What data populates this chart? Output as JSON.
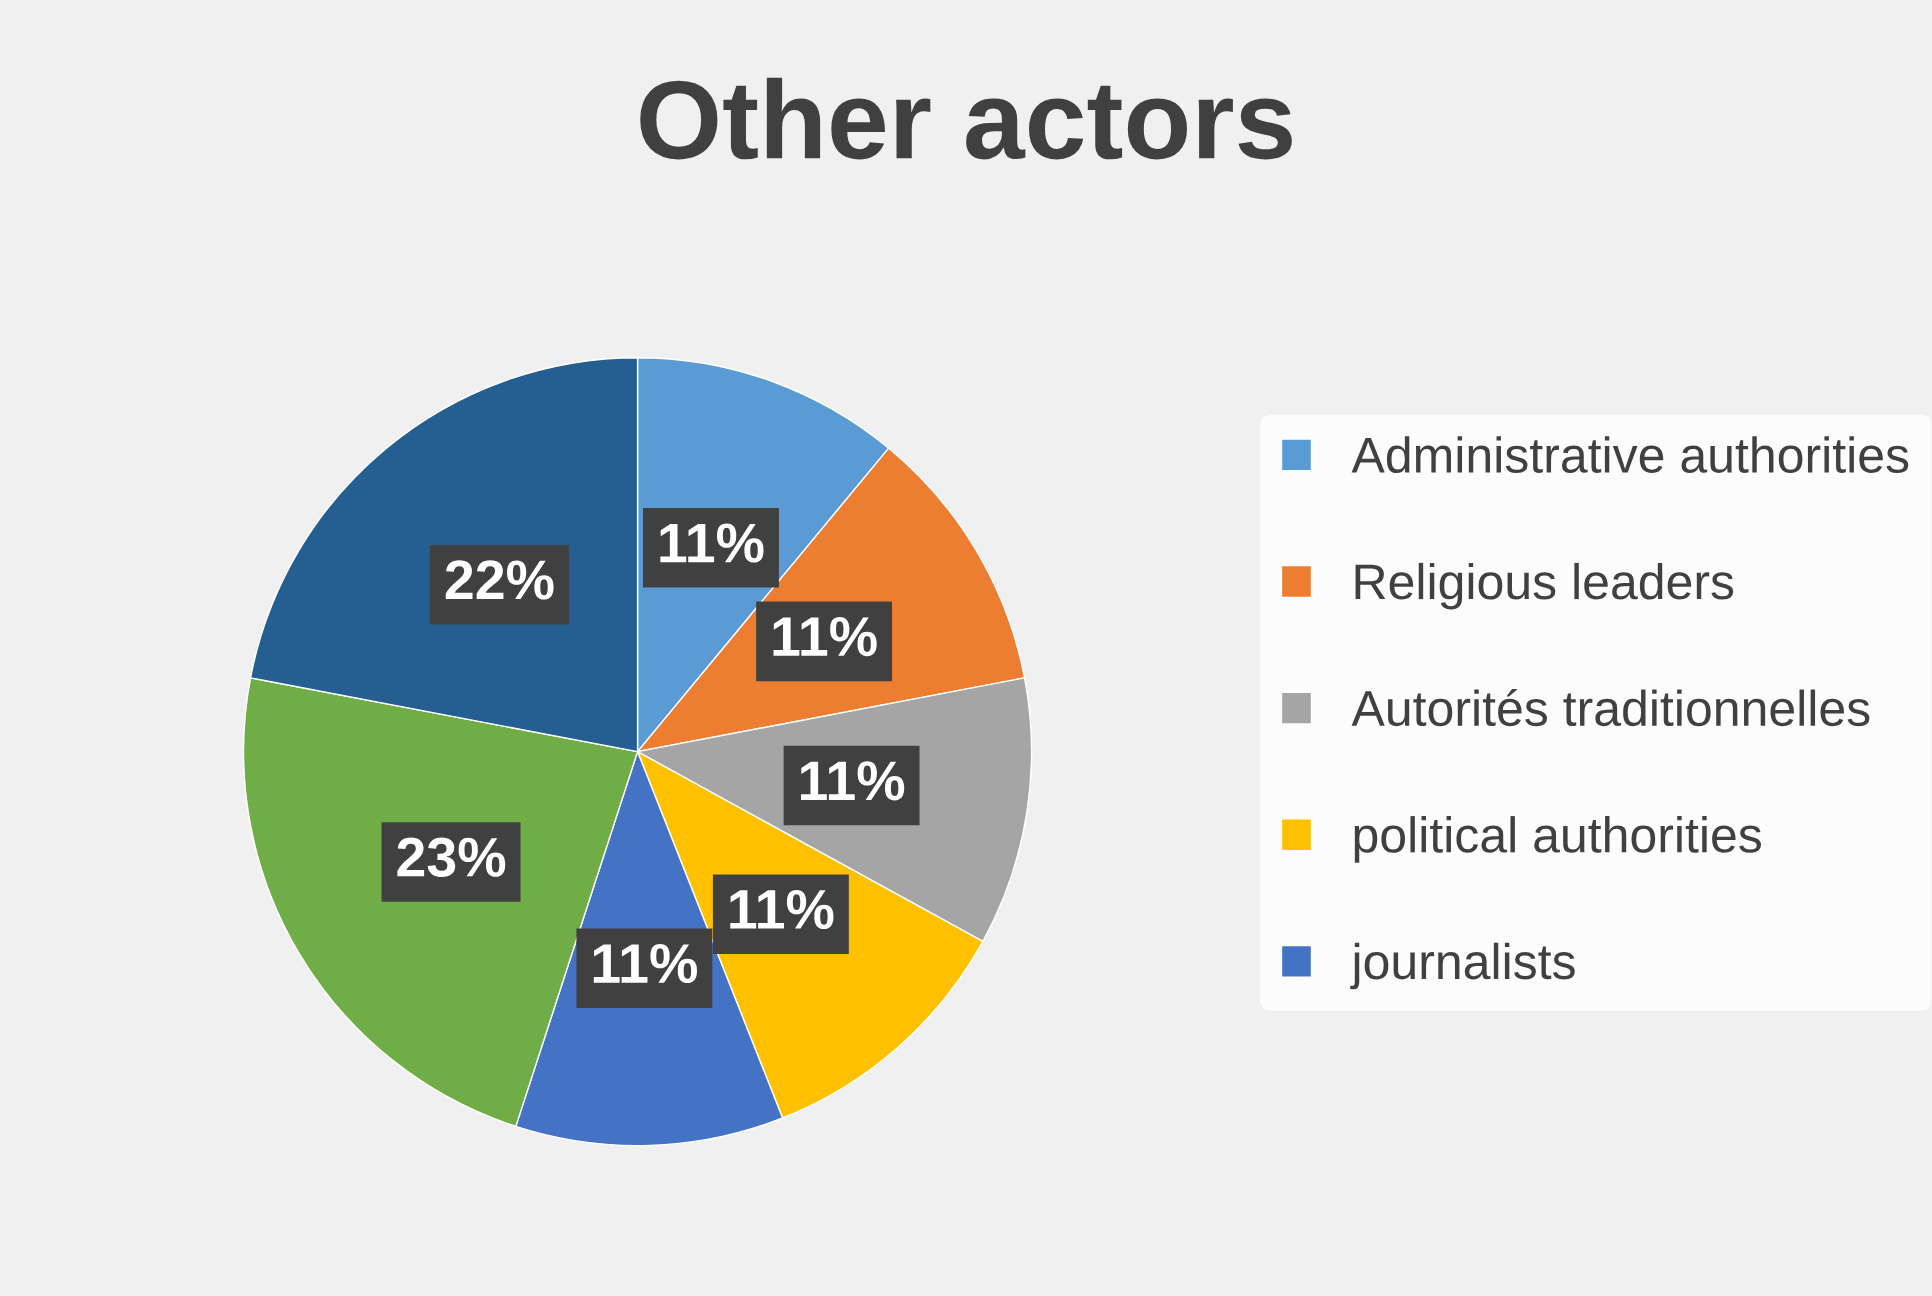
{
  "chart_data": {
    "type": "pie",
    "title": "Other actors",
    "categories": [
      "Administrative authorities",
      "Religious leaders",
      "Autorités traditionnelles",
      "political authorities",
      "journalists",
      null,
      null
    ],
    "values": [
      11,
      11,
      11,
      11,
      11,
      23,
      22
    ],
    "colors": [
      "#5b9bd5",
      "#ed7d31",
      "#a5a5a5",
      "#ffc000",
      "#4472c4",
      "#70ad47",
      "#255e91"
    ],
    "value_labels": [
      "11%",
      "11%",
      "11%",
      "11%",
      "11%",
      "23%",
      "22%"
    ],
    "legend": "right"
  }
}
